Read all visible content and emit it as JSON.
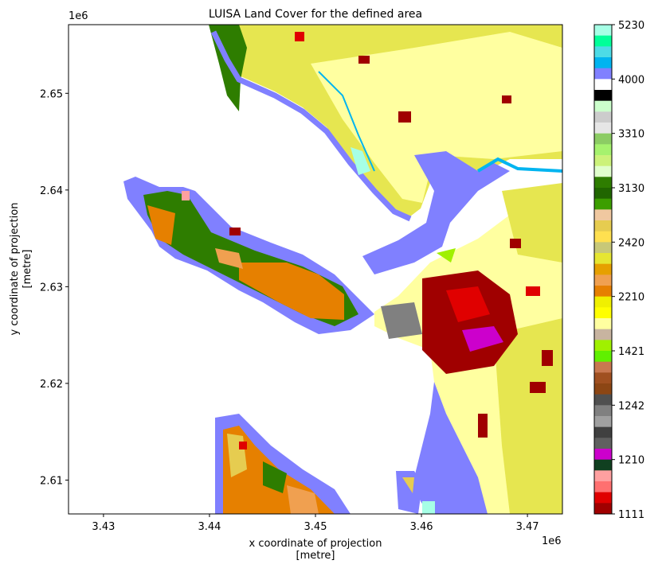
{
  "chart_data": {
    "type": "raster",
    "title": "LUISA Land Cover for the defined area",
    "xlabel": [
      "x coordinate of projection",
      "[metre]"
    ],
    "ylabel": [
      "y coordinate of projection",
      "[metre]"
    ],
    "xlim": [
      3.4267,
      3.4733
    ],
    "ylim": [
      2.6065,
      2.6571
    ],
    "xticks": [
      3.43,
      3.44,
      3.45,
      3.46,
      3.47
    ],
    "yticks": [
      2.61,
      2.62,
      2.63,
      2.64,
      2.65
    ],
    "x_offset": "1e6",
    "y_offset": "1e6",
    "colorbar": {
      "colors": [
        "#a6ffe6",
        "#00ff99",
        "#4ddbe6",
        "#00b4f0",
        "#8080ff",
        "#ffffff",
        "#000000",
        "#ccffcc",
        "#cccccc",
        "#e6e6e6",
        "#8ccc64",
        "#a6f26e",
        "#ccf27a",
        "#e0ffcc",
        "#2e7d00",
        "#206600",
        "#3c9e00",
        "#f0c8a0",
        "#e6cc50",
        "#ffe050",
        "#c8c878",
        "#e6e632",
        "#e6a000",
        "#f0a050",
        "#e68000",
        "#f0f000",
        "#ffff00",
        "#ffffa0",
        "#c8b4a0",
        "#a0f000",
        "#60f000",
        "#c87850",
        "#a05020",
        "#8c4614",
        "#505050",
        "#808080",
        "#a0a0a0",
        "#404040",
        "#606060",
        "#cc00cc",
        "#104020",
        "#ffa0a0",
        "#ff7070",
        "#e00000",
        "#a00000"
      ],
      "ticks": [
        5230,
        4000,
        3310,
        3130,
        2420,
        2210,
        1421,
        1242,
        1210,
        1111
      ]
    }
  }
}
